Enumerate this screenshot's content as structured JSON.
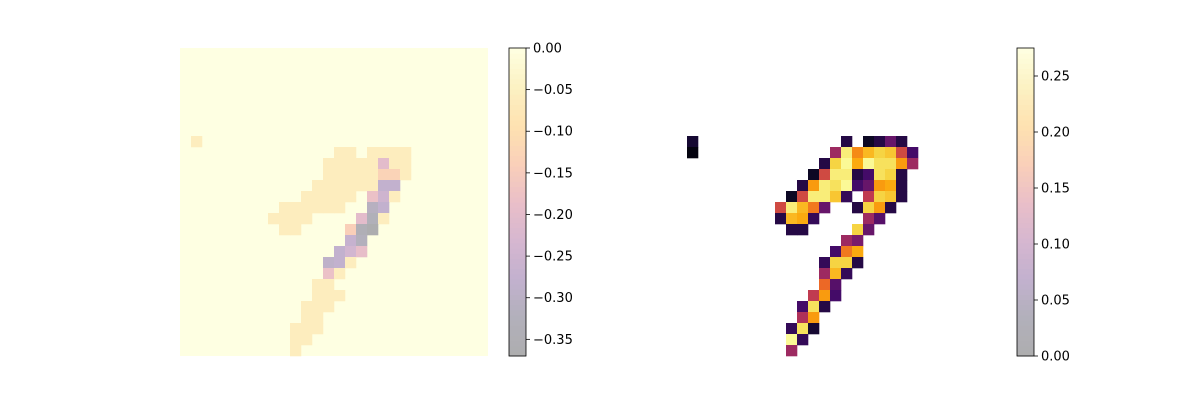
{
  "chart_data": [
    {
      "type": "heatmap",
      "title": "",
      "grid_size": [
        28,
        28
      ],
      "colormap": "inferno_r",
      "cells_shown": "all",
      "background_value": 0.0,
      "clim": [
        -0.37,
        0.0
      ],
      "colorbar": {
        "ticks": [
          0.0,
          -0.05,
          -0.1,
          -0.15,
          -0.2,
          -0.25,
          -0.3,
          -0.35
        ],
        "tick_labels": [
          "0.00",
          "−0.05",
          "−0.10",
          "−0.15",
          "−0.20",
          "−0.25",
          "−0.30",
          "−0.35"
        ]
      },
      "cells": [
        [
          8,
          1,
          -0.06
        ],
        [
          9,
          14,
          -0.06
        ],
        [
          9,
          15,
          -0.06
        ],
        [
          9,
          17,
          -0.06
        ],
        [
          9,
          18,
          -0.06
        ],
        [
          9,
          19,
          -0.06
        ],
        [
          9,
          20,
          -0.06
        ],
        [
          10,
          13,
          -0.06
        ],
        [
          10,
          14,
          -0.06
        ],
        [
          10,
          15,
          -0.06
        ],
        [
          10,
          16,
          -0.06
        ],
        [
          10,
          17,
          -0.06
        ],
        [
          10,
          18,
          -0.2
        ],
        [
          10,
          19,
          -0.06
        ],
        [
          10,
          20,
          -0.06
        ],
        [
          11,
          13,
          -0.06
        ],
        [
          11,
          14,
          -0.06
        ],
        [
          11,
          15,
          -0.06
        ],
        [
          11,
          16,
          -0.06
        ],
        [
          11,
          17,
          -0.06
        ],
        [
          11,
          18,
          -0.13
        ],
        [
          11,
          19,
          -0.13
        ],
        [
          11,
          20,
          -0.06
        ],
        [
          12,
          12,
          -0.06
        ],
        [
          12,
          13,
          -0.06
        ],
        [
          12,
          14,
          -0.06
        ],
        [
          12,
          15,
          -0.06
        ],
        [
          12,
          16,
          -0.06
        ],
        [
          12,
          17,
          -0.06
        ],
        [
          12,
          18,
          -0.28
        ],
        [
          12,
          19,
          -0.28
        ],
        [
          13,
          11,
          -0.06
        ],
        [
          13,
          12,
          -0.06
        ],
        [
          13,
          13,
          -0.06
        ],
        [
          13,
          14,
          -0.06
        ],
        [
          13,
          15,
          -0.06
        ],
        [
          13,
          17,
          -0.18
        ],
        [
          13,
          18,
          -0.25
        ],
        [
          13,
          19,
          -0.06
        ],
        [
          14,
          9,
          -0.06
        ],
        [
          14,
          10,
          -0.06
        ],
        [
          14,
          11,
          -0.06
        ],
        [
          14,
          12,
          -0.06
        ],
        [
          14,
          13,
          -0.06
        ],
        [
          14,
          14,
          -0.06
        ],
        [
          14,
          17,
          -0.31
        ],
        [
          14,
          18,
          -0.28
        ],
        [
          15,
          8,
          -0.06
        ],
        [
          15,
          9,
          -0.06
        ],
        [
          15,
          10,
          -0.06
        ],
        [
          15,
          11,
          -0.06
        ],
        [
          15,
          16,
          -0.2
        ],
        [
          15,
          17,
          -0.33
        ],
        [
          15,
          18,
          -0.06
        ],
        [
          16,
          9,
          -0.06
        ],
        [
          16,
          10,
          -0.06
        ],
        [
          16,
          15,
          -0.14
        ],
        [
          16,
          16,
          -0.34
        ],
        [
          16,
          17,
          -0.37
        ],
        [
          17,
          15,
          -0.27
        ],
        [
          17,
          16,
          -0.32
        ],
        [
          18,
          14,
          -0.28
        ],
        [
          18,
          15,
          -0.24
        ],
        [
          18,
          16,
          -0.19
        ],
        [
          19,
          13,
          -0.29
        ],
        [
          19,
          14,
          -0.28
        ],
        [
          19,
          15,
          -0.06
        ],
        [
          20,
          13,
          -0.18
        ],
        [
          20,
          14,
          -0.06
        ],
        [
          21,
          12,
          -0.06
        ],
        [
          21,
          13,
          -0.06
        ],
        [
          22,
          12,
          -0.06
        ],
        [
          22,
          13,
          -0.06
        ],
        [
          22,
          14,
          -0.06
        ],
        [
          23,
          11,
          -0.06
        ],
        [
          23,
          12,
          -0.06
        ],
        [
          23,
          13,
          -0.06
        ],
        [
          24,
          11,
          -0.06
        ],
        [
          24,
          12,
          -0.06
        ],
        [
          25,
          10,
          -0.06
        ],
        [
          25,
          11,
          -0.06
        ],
        [
          25,
          12,
          -0.06
        ],
        [
          26,
          10,
          -0.06
        ],
        [
          26,
          11,
          -0.06
        ],
        [
          27,
          10,
          -0.06
        ]
      ]
    },
    {
      "type": "heatmap",
      "title": "",
      "grid_size": [
        28,
        28
      ],
      "colormap": "inferno_r",
      "cells_shown": "listed_only",
      "clim": [
        0.0,
        0.275
      ],
      "colorbar": {
        "ticks": [
          0.0,
          0.05,
          0.1,
          0.15,
          0.2,
          0.25
        ],
        "tick_labels": [
          "0.00",
          "0.05",
          "0.10",
          "0.15",
          "0.20",
          "0.25"
        ]
      },
      "cells": [
        [
          8,
          1,
          0.04
        ],
        [
          9,
          1,
          0.01
        ],
        [
          8,
          15,
          0.05
        ],
        [
          8,
          17,
          0.03
        ],
        [
          8,
          18,
          0.05
        ],
        [
          8,
          19,
          0.09
        ],
        [
          8,
          20,
          0.05
        ],
        [
          9,
          14,
          0.12
        ],
        [
          9,
          15,
          0.26
        ],
        [
          9,
          16,
          0.19
        ],
        [
          9,
          17,
          0.22
        ],
        [
          9,
          18,
          0.24
        ],
        [
          9,
          19,
          0.23
        ],
        [
          9,
          20,
          0.15
        ],
        [
          9,
          21,
          0.07
        ],
        [
          10,
          13,
          0.05
        ],
        [
          10,
          14,
          0.24
        ],
        [
          10,
          15,
          0.27
        ],
        [
          10,
          16,
          0.21
        ],
        [
          10,
          17,
          0.27
        ],
        [
          10,
          18,
          0.25
        ],
        [
          10,
          19,
          0.25
        ],
        [
          10,
          20,
          0.2
        ],
        [
          10,
          21,
          0.12
        ],
        [
          11,
          12,
          0.03
        ],
        [
          11,
          13,
          0.15
        ],
        [
          11,
          14,
          0.26
        ],
        [
          11,
          15,
          0.26
        ],
        [
          11,
          16,
          0.05
        ],
        [
          11,
          17,
          0.07
        ],
        [
          11,
          18,
          0.25
        ],
        [
          11,
          19,
          0.24
        ],
        [
          11,
          20,
          0.05
        ],
        [
          12,
          11,
          0.05
        ],
        [
          12,
          12,
          0.2
        ],
        [
          12,
          13,
          0.26
        ],
        [
          12,
          14,
          0.25
        ],
        [
          12,
          15,
          0.27
        ],
        [
          12,
          16,
          0.07
        ],
        [
          12,
          17,
          0.09
        ],
        [
          12,
          18,
          0.2
        ],
        [
          12,
          19,
          0.21
        ],
        [
          12,
          20,
          0.05
        ],
        [
          13,
          10,
          0.03
        ],
        [
          13,
          11,
          0.15
        ],
        [
          13,
          12,
          0.26
        ],
        [
          13,
          13,
          0.26
        ],
        [
          13,
          14,
          0.23
        ],
        [
          13,
          15,
          0.06
        ],
        [
          13,
          17,
          0.14
        ],
        [
          13,
          18,
          0.24
        ],
        [
          13,
          19,
          0.23
        ],
        [
          13,
          20,
          0.05
        ],
        [
          14,
          9,
          0.15
        ],
        [
          14,
          10,
          0.26
        ],
        [
          14,
          11,
          0.22
        ],
        [
          14,
          12,
          0.18
        ],
        [
          14,
          13,
          0.09
        ],
        [
          14,
          16,
          0.05
        ],
        [
          14,
          17,
          0.24
        ],
        [
          14,
          18,
          0.2
        ],
        [
          14,
          19,
          0.05
        ],
        [
          15,
          9,
          0.05
        ],
        [
          15,
          10,
          0.22
        ],
        [
          15,
          11,
          0.21
        ],
        [
          15,
          12,
          0.06
        ],
        [
          15,
          17,
          0.12
        ],
        [
          15,
          18,
          0.08
        ],
        [
          16,
          10,
          0.05
        ],
        [
          16,
          11,
          0.05
        ],
        [
          16,
          16,
          0.24
        ],
        [
          16,
          17,
          0.09
        ],
        [
          17,
          15,
          0.12
        ],
        [
          17,
          16,
          0.1
        ],
        [
          18,
          14,
          0.07
        ],
        [
          18,
          15,
          0.18
        ],
        [
          18,
          16,
          0.21
        ],
        [
          19,
          13,
          0.06
        ],
        [
          19,
          14,
          0.24
        ],
        [
          19,
          15,
          0.24
        ],
        [
          19,
          16,
          0.05
        ],
        [
          20,
          13,
          0.12
        ],
        [
          20,
          14,
          0.22
        ],
        [
          20,
          15,
          0.06
        ],
        [
          21,
          13,
          0.17
        ],
        [
          21,
          14,
          0.08
        ],
        [
          22,
          12,
          0.14
        ],
        [
          22,
          13,
          0.2
        ],
        [
          22,
          14,
          0.07
        ],
        [
          23,
          11,
          0.07
        ],
        [
          23,
          12,
          0.25
        ],
        [
          23,
          13,
          0.05
        ],
        [
          24,
          11,
          0.13
        ],
        [
          24,
          12,
          0.2
        ],
        [
          25,
          10,
          0.06
        ],
        [
          25,
          11,
          0.25
        ],
        [
          25,
          12,
          0.04
        ],
        [
          26,
          10,
          0.27
        ],
        [
          26,
          11,
          0.06
        ],
        [
          27,
          10,
          0.12
        ]
      ]
    }
  ]
}
